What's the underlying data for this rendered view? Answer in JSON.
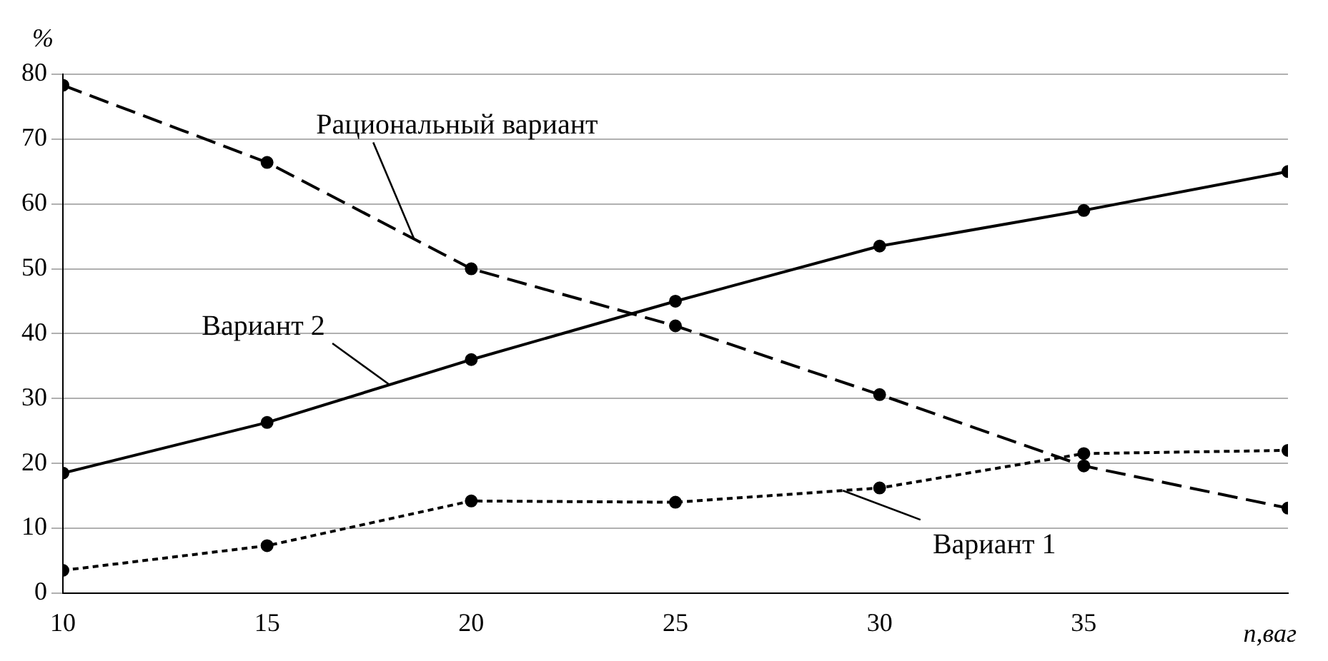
{
  "chart_data": {
    "type": "line",
    "xlabel": "n,ваг",
    "ylabel": "%",
    "x": [
      10,
      15,
      20,
      25,
      30,
      35,
      40
    ],
    "xlim": [
      10,
      40
    ],
    "xticks": [
      10,
      15,
      20,
      25,
      30,
      35
    ],
    "ylim": [
      0,
      80
    ],
    "yticks": [
      0,
      10,
      20,
      30,
      40,
      50,
      60,
      70,
      80
    ],
    "grid": "y",
    "legend": false,
    "marker": "circle",
    "series": [
      {
        "name": "Рациональный вариант",
        "color": "#000000",
        "line_style": "dashed",
        "values": [
          78.3,
          66.4,
          50,
          41.2,
          30.6,
          19.6,
          13.1
        ]
      },
      {
        "name": "Вариант 2",
        "color": "#000000",
        "line_style": "solid",
        "values": [
          18.5,
          26.3,
          36,
          45,
          53.5,
          59,
          65
        ]
      },
      {
        "name": "Вариант 1",
        "color": "#000000",
        "line_style": "dotted",
        "values": [
          3.5,
          7.3,
          14.2,
          14,
          16.2,
          21.5,
          22
        ]
      }
    ]
  }
}
